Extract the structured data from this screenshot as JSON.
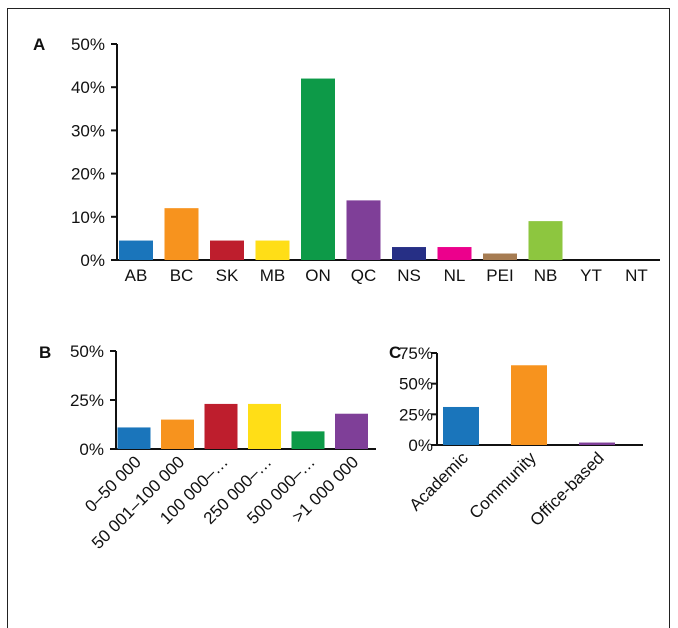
{
  "chart_data": [
    {
      "panel": "A",
      "type": "bar",
      "categories": [
        "AB",
        "BC",
        "SK",
        "MB",
        "ON",
        "QC",
        "NS",
        "NL",
        "PEI",
        "NB",
        "YT",
        "NT"
      ],
      "values": [
        4.5,
        12,
        4.5,
        4.5,
        42,
        13.8,
        3,
        3,
        1.5,
        9,
        0,
        0
      ],
      "colors": [
        "#1a75bb",
        "#f7931e",
        "#be1e2d",
        "#ffde17",
        "#0d9a48",
        "#7f3f98",
        "#262f85",
        "#ec008c",
        "#a67c52",
        "#8dc63f",
        "#ffffff",
        "#ffffff"
      ],
      "ylim": [
        0,
        50
      ],
      "yticks": [
        "0%",
        "10%",
        "20%",
        "30%",
        "40%",
        "50%"
      ],
      "unit": "%"
    },
    {
      "panel": "B",
      "type": "bar",
      "categories": [
        "0–50 000",
        "50 001–100 000",
        "100 000–…",
        "250 000–…",
        "500 000–…",
        ">1 000 000"
      ],
      "values": [
        11,
        15,
        23,
        23,
        9,
        18
      ],
      "colors": [
        "#1a75bb",
        "#f7931e",
        "#be1e2d",
        "#ffde17",
        "#0d9a48",
        "#7f3f98"
      ],
      "ylim": [
        0,
        50
      ],
      "yticks": [
        "0%",
        "25%",
        "50%"
      ],
      "unit": "%"
    },
    {
      "panel": "C",
      "type": "bar",
      "categories": [
        "Academic",
        "Community",
        "Office-based"
      ],
      "values": [
        31,
        65,
        2
      ],
      "colors": [
        "#1a75bb",
        "#f7931e",
        "#7f3f98"
      ],
      "ylim": [
        0,
        75
      ],
      "yticks": [
        "0%",
        "25%",
        "50%",
        "75%"
      ],
      "unit": "%"
    }
  ]
}
